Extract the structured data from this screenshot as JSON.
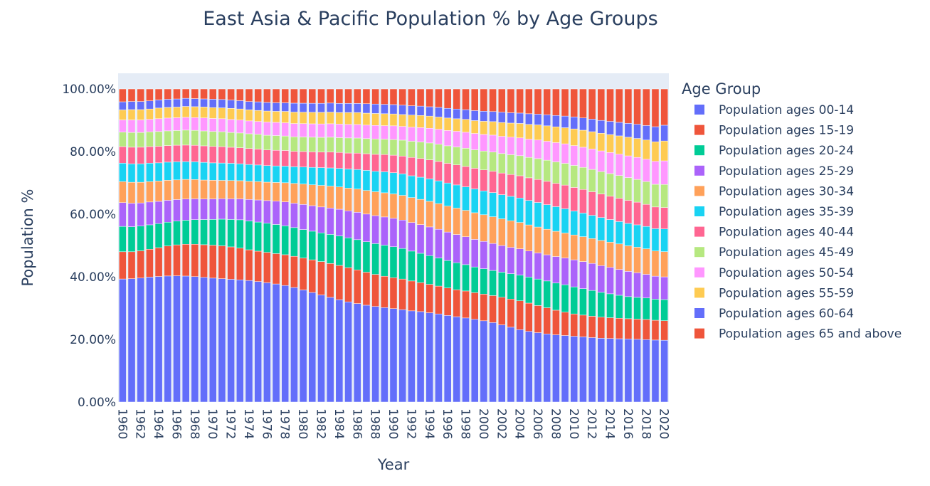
{
  "chart_data": {
    "type": "bar",
    "stacked": true,
    "title": "East Asia & Pacific Population % by Age Groups",
    "xlabel": "Year",
    "ylabel": "Population %",
    "ylim": [
      0,
      105
    ],
    "y_ticks": [
      "0.00%",
      "20.00%",
      "40.00%",
      "60.00%",
      "80.00%",
      "100.00%"
    ],
    "y_tick_values": [
      0,
      20,
      40,
      60,
      80,
      100
    ],
    "legend_title": "Age Group",
    "legend_position": "right",
    "background_color": "#e5ecf6",
    "grid": false,
    "x_tick_labels": [
      "1960",
      "1962",
      "1964",
      "1966",
      "1968",
      "1970",
      "1972",
      "1974",
      "1976",
      "1978",
      "1980",
      "1982",
      "1984",
      "1986",
      "1988",
      "1990",
      "1992",
      "1994",
      "1996",
      "1998",
      "2000",
      "2002",
      "2004",
      "2006",
      "2008",
      "2010",
      "2012",
      "2014",
      "2016",
      "2018",
      "2020"
    ],
    "x": [
      1960,
      1961,
      1962,
      1963,
      1964,
      1965,
      1966,
      1967,
      1968,
      1969,
      1970,
      1971,
      1972,
      1973,
      1974,
      1975,
      1976,
      1977,
      1978,
      1979,
      1980,
      1981,
      1982,
      1983,
      1984,
      1985,
      1986,
      1987,
      1988,
      1989,
      1990,
      1991,
      1992,
      1993,
      1994,
      1995,
      1996,
      1997,
      1998,
      1999,
      2000,
      2001,
      2002,
      2003,
      2004,
      2005,
      2006,
      2007,
      2008,
      2009,
      2010,
      2011,
      2012,
      2013,
      2014,
      2015,
      2016,
      2017,
      2018,
      2019,
      2020
    ],
    "series": [
      {
        "name": "Population ages 00-14",
        "color": "#636efa",
        "values": [
          39.3,
          39.4,
          39.6,
          39.9,
          40.1,
          40.3,
          40.4,
          40.4,
          40.3,
          40.1,
          39.9,
          39.8,
          39.8,
          39.7,
          39.6,
          39.3,
          38.9,
          38.5,
          37.9,
          37.1,
          36.2,
          35.2,
          34.3,
          33.4,
          32.6,
          31.9,
          31.3,
          30.8,
          30.4,
          30.1,
          29.9,
          29.6,
          29.3,
          29.0,
          28.6,
          28.2,
          27.7,
          27.2,
          26.8,
          26.4,
          25.9,
          25.3,
          24.6,
          23.9,
          23.1,
          22.5,
          22.0,
          21.6,
          21.3,
          21.1,
          20.9,
          20.7,
          20.5,
          20.3,
          20.2,
          20.1,
          20.0,
          19.9,
          19.8,
          19.7,
          19.6
        ]
      },
      {
        "name": "Population ages 15-19",
        "color": "#ef553b",
        "values": [
          8.7,
          8.6,
          8.7,
          8.9,
          9.2,
          9.6,
          9.9,
          10.2,
          10.4,
          10.5,
          10.6,
          10.6,
          10.5,
          10.3,
          10.0,
          9.9,
          9.9,
          9.9,
          10.0,
          10.1,
          10.3,
          10.5,
          10.7,
          10.8,
          10.9,
          10.9,
          10.7,
          10.5,
          10.2,
          10.0,
          9.9,
          9.8,
          9.6,
          9.3,
          9.1,
          8.9,
          8.8,
          8.6,
          8.6,
          8.5,
          8.5,
          8.6,
          8.8,
          9.0,
          9.2,
          9.0,
          8.6,
          8.3,
          7.8,
          7.4,
          7.1,
          6.9,
          6.8,
          6.7,
          6.6,
          6.5,
          6.4,
          6.4,
          6.4,
          6.3,
          6.2
        ]
      },
      {
        "name": "Population ages 20-24",
        "color": "#00cc96",
        "values": [
          8.1,
          8.0,
          7.9,
          7.8,
          7.7,
          7.6,
          7.6,
          7.7,
          7.9,
          8.1,
          8.3,
          8.6,
          8.9,
          9.2,
          9.4,
          9.5,
          9.5,
          9.5,
          9.4,
          9.3,
          9.2,
          9.2,
          9.2,
          9.3,
          9.4,
          9.5,
          9.6,
          9.7,
          9.8,
          9.9,
          9.9,
          9.8,
          9.6,
          9.4,
          9.2,
          9.0,
          8.8,
          8.6,
          8.4,
          8.2,
          8.1,
          8.0,
          8.0,
          8.1,
          8.2,
          8.3,
          8.4,
          8.5,
          8.6,
          8.7,
          8.6,
          8.4,
          8.2,
          7.9,
          7.6,
          7.3,
          7.0,
          6.9,
          6.8,
          6.7,
          6.7
        ]
      },
      {
        "name": "Population ages 25-29",
        "color": "#ab63fa",
        "values": [
          7.6,
          7.5,
          7.4,
          7.3,
          7.1,
          7.0,
          6.9,
          6.8,
          6.7,
          6.6,
          6.6,
          6.6,
          6.7,
          6.8,
          7.0,
          7.2,
          7.4,
          7.6,
          7.8,
          7.9,
          8.1,
          8.2,
          8.3,
          8.4,
          8.5,
          8.6,
          8.7,
          8.8,
          8.9,
          9.0,
          9.1,
          9.1,
          9.2,
          9.2,
          9.2,
          9.2,
          9.1,
          9.0,
          8.9,
          8.8,
          8.7,
          8.6,
          8.5,
          8.4,
          8.4,
          8.3,
          8.3,
          8.3,
          8.4,
          8.5,
          8.6,
          8.6,
          8.6,
          8.5,
          8.4,
          8.2,
          8.0,
          7.8,
          7.5,
          7.3,
          7.2
        ]
      },
      {
        "name": "Population ages 30-34",
        "color": "#ffa15a",
        "values": [
          6.7,
          6.7,
          6.6,
          6.5,
          6.5,
          6.4,
          6.3,
          6.3,
          6.2,
          6.1,
          6.0,
          5.9,
          5.9,
          5.9,
          5.9,
          6.0,
          6.0,
          6.1,
          6.2,
          6.4,
          6.6,
          6.7,
          6.9,
          7.0,
          7.1,
          7.2,
          7.4,
          7.5,
          7.6,
          7.7,
          7.8,
          7.9,
          8.0,
          8.1,
          8.2,
          8.2,
          8.3,
          8.4,
          8.4,
          8.5,
          8.5,
          8.5,
          8.5,
          8.5,
          8.4,
          8.3,
          8.2,
          8.1,
          8.0,
          7.9,
          7.9,
          7.9,
          7.9,
          8.0,
          8.0,
          8.1,
          8.1,
          8.1,
          8.1,
          8.0,
          8.0
        ]
      },
      {
        "name": "Population ages 35-39",
        "color": "#19d3f3",
        "values": [
          5.9,
          5.9,
          5.9,
          5.9,
          5.8,
          5.8,
          5.8,
          5.7,
          5.7,
          5.7,
          5.6,
          5.6,
          5.6,
          5.5,
          5.5,
          5.4,
          5.4,
          5.4,
          5.4,
          5.4,
          5.5,
          5.6,
          5.7,
          5.8,
          5.9,
          6.1,
          6.2,
          6.4,
          6.5,
          6.7,
          6.8,
          6.9,
          7.0,
          7.1,
          7.2,
          7.3,
          7.4,
          7.4,
          7.5,
          7.6,
          7.6,
          7.7,
          7.7,
          7.8,
          7.8,
          7.8,
          7.8,
          7.8,
          7.8,
          7.7,
          7.6,
          7.5,
          7.4,
          7.3,
          7.2,
          7.1,
          7.1,
          7.1,
          7.1,
          7.1,
          7.2
        ]
      },
      {
        "name": "Population ages 40-44",
        "color": "#ff6692",
        "values": [
          5.3,
          5.3,
          5.3,
          5.3,
          5.3,
          5.3,
          5.3,
          5.3,
          5.3,
          5.3,
          5.3,
          5.3,
          5.2,
          5.2,
          5.2,
          5.2,
          5.1,
          5.1,
          5.1,
          5.0,
          5.0,
          5.0,
          5.0,
          5.1,
          5.1,
          5.1,
          5.2,
          5.3,
          5.4,
          5.5,
          5.6,
          5.7,
          5.9,
          6.0,
          6.1,
          6.2,
          6.3,
          6.4,
          6.5,
          6.6,
          6.7,
          6.8,
          6.9,
          7.0,
          7.1,
          7.2,
          7.3,
          7.4,
          7.4,
          7.5,
          7.5,
          7.5,
          7.5,
          7.5,
          7.4,
          7.4,
          7.3,
          7.2,
          7.0,
          6.9,
          6.8
        ]
      },
      {
        "name": "Population ages 45-49",
        "color": "#b6e880",
        "values": [
          4.6,
          4.7,
          4.7,
          4.7,
          4.7,
          4.7,
          4.7,
          4.8,
          4.8,
          4.8,
          4.8,
          4.8,
          4.8,
          4.8,
          4.8,
          4.8,
          4.8,
          4.8,
          4.7,
          4.7,
          4.7,
          4.7,
          4.7,
          4.7,
          4.7,
          4.8,
          4.8,
          4.8,
          4.9,
          4.9,
          5.0,
          5.1,
          5.2,
          5.3,
          5.4,
          5.5,
          5.6,
          5.7,
          5.8,
          5.9,
          6.0,
          6.1,
          6.2,
          6.3,
          6.4,
          6.5,
          6.6,
          6.7,
          6.8,
          6.9,
          7.0,
          7.0,
          7.1,
          7.1,
          7.2,
          7.2,
          7.2,
          7.2,
          7.2,
          7.2,
          7.3
        ]
      },
      {
        "name": "Population ages 50-54",
        "color": "#ff97ff",
        "values": [
          3.9,
          4.0,
          4.0,
          4.0,
          4.1,
          4.1,
          4.1,
          4.1,
          4.1,
          4.2,
          4.2,
          4.2,
          4.2,
          4.2,
          4.2,
          4.2,
          4.3,
          4.3,
          4.3,
          4.3,
          4.3,
          4.3,
          4.3,
          4.3,
          4.3,
          4.3,
          4.3,
          4.3,
          4.3,
          4.3,
          4.4,
          4.4,
          4.5,
          4.6,
          4.7,
          4.8,
          4.9,
          5.0,
          5.1,
          5.2,
          5.3,
          5.4,
          5.5,
          5.6,
          5.7,
          5.8,
          5.9,
          6.0,
          6.1,
          6.2,
          6.3,
          6.4,
          6.5,
          6.6,
          6.7,
          6.8,
          6.9,
          7.0,
          7.1,
          7.3,
          7.5
        ]
      },
      {
        "name": "Population ages 55-59",
        "color": "#fecb52",
        "values": [
          3.2,
          3.3,
          3.3,
          3.3,
          3.4,
          3.4,
          3.4,
          3.5,
          3.5,
          3.5,
          3.5,
          3.5,
          3.6,
          3.6,
          3.6,
          3.6,
          3.6,
          3.6,
          3.7,
          3.7,
          3.7,
          3.7,
          3.7,
          3.7,
          3.7,
          3.8,
          3.8,
          3.8,
          3.8,
          3.8,
          3.8,
          3.8,
          3.9,
          3.9,
          3.9,
          3.9,
          4.0,
          4.0,
          4.1,
          4.1,
          4.2,
          4.3,
          4.4,
          4.5,
          4.6,
          4.7,
          4.8,
          4.9,
          5.0,
          5.1,
          5.3,
          5.4,
          5.5,
          5.6,
          5.7,
          5.8,
          5.9,
          6.0,
          6.1,
          6.2,
          6.3
        ]
      },
      {
        "name": "Population ages 60-64",
        "color": "#636efa",
        "values": [
          2.6,
          2.6,
          2.6,
          2.6,
          2.6,
          2.6,
          2.6,
          2.6,
          2.6,
          2.6,
          2.7,
          2.7,
          2.7,
          2.7,
          2.7,
          2.8,
          2.8,
          2.8,
          2.8,
          2.9,
          2.9,
          2.9,
          2.9,
          2.9,
          2.9,
          2.9,
          2.9,
          3.0,
          3.0,
          3.0,
          3.0,
          3.0,
          3.0,
          3.0,
          3.0,
          3.1,
          3.1,
          3.1,
          3.1,
          3.2,
          3.2,
          3.2,
          3.3,
          3.3,
          3.3,
          3.4,
          3.4,
          3.5,
          3.6,
          3.7,
          3.8,
          3.9,
          4.0,
          4.1,
          4.2,
          4.3,
          4.4,
          4.5,
          4.6,
          4.8,
          5.0
        ]
      },
      {
        "name": "Population ages 65 and above",
        "color": "#ef553b",
        "values": [
          4.1,
          4.0,
          4.0,
          3.8,
          3.5,
          3.3,
          3.2,
          3.0,
          3.1,
          3.2,
          3.3,
          3.4,
          3.6,
          3.8,
          4.1,
          4.2,
          4.4,
          4.5,
          4.5,
          4.6,
          4.6,
          4.6,
          4.6,
          4.5,
          4.6,
          4.6,
          4.6,
          4.7,
          4.8,
          4.9,
          5.0,
          5.2,
          5.4,
          5.5,
          5.7,
          5.9,
          6.2,
          6.4,
          6.6,
          6.9,
          7.1,
          7.2,
          7.4,
          7.6,
          7.7,
          7.9,
          8.0,
          8.2,
          8.4,
          8.6,
          8.9,
          9.2,
          9.6,
          10.0,
          10.3,
          10.6,
          10.9,
          11.2,
          11.6,
          12.0,
          11.5
        ]
      }
    ]
  }
}
